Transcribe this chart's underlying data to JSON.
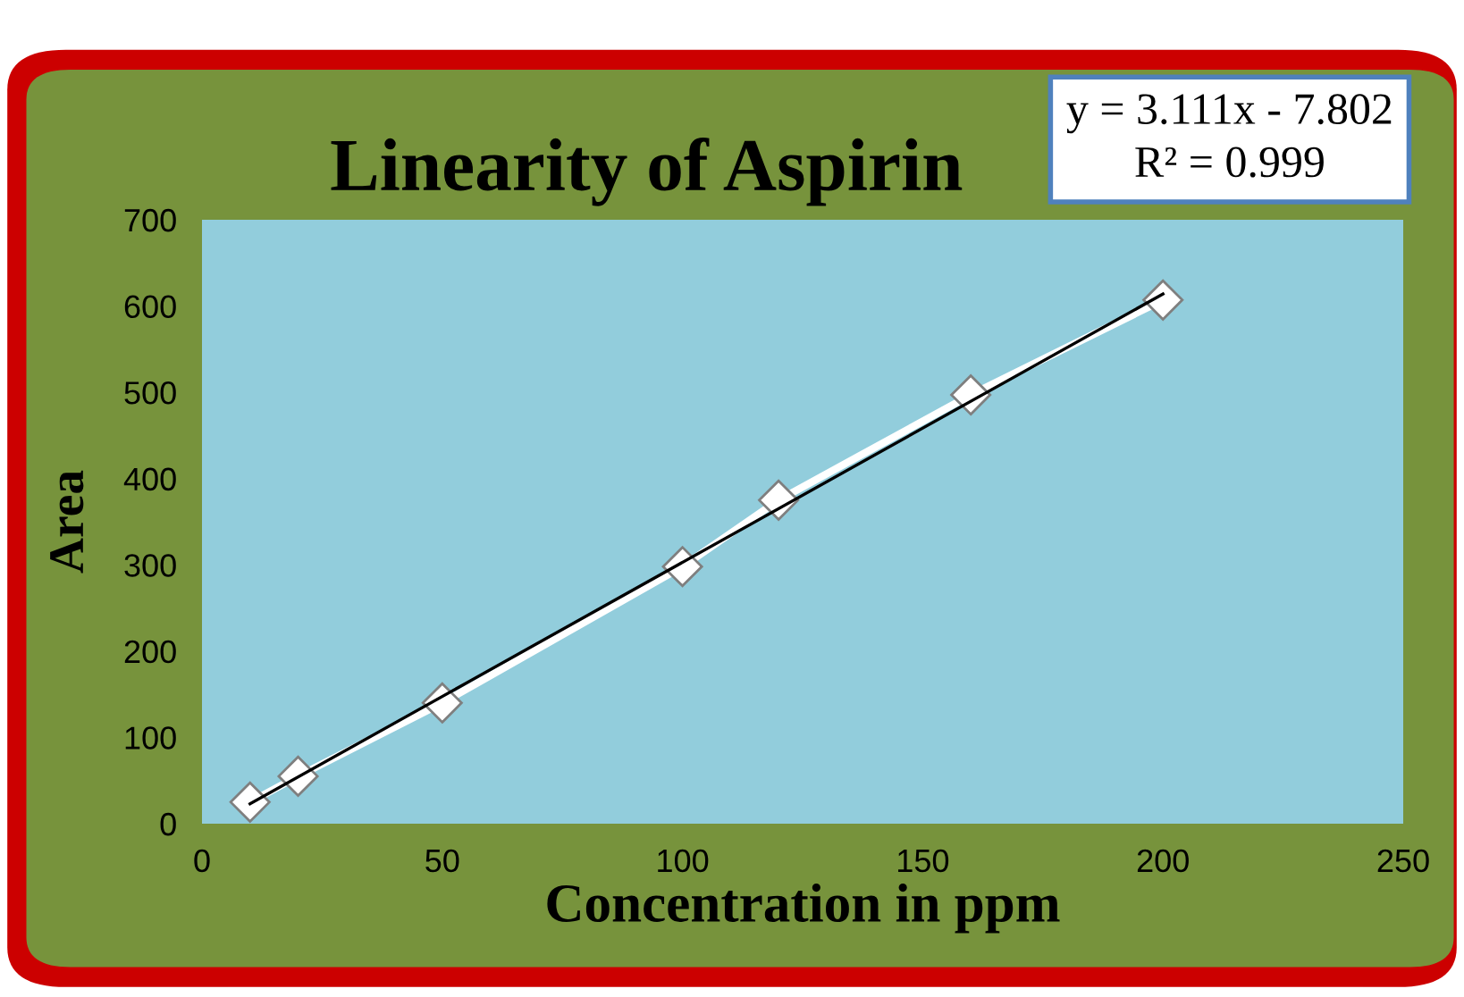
{
  "chart_data": {
    "type": "line",
    "title": "Linearity of Aspirin",
    "xlabel": "Concentration in ppm",
    "ylabel": "Area",
    "annotations": [
      "y = 3.111x - 7.802\nR² = 0.999"
    ],
    "series": [
      {
        "color": "#ffffff",
        "marker": "diamond",
        "x": [
          10,
          20,
          50,
          100,
          120,
          160,
          200
        ],
        "values": [
          25,
          55,
          140,
          298,
          375,
          497,
          607
        ]
      },
      {
        "color": "#000000",
        "marker": "none",
        "x": [
          10,
          200
        ],
        "values": [
          23,
          614
        ]
      }
    ],
    "xlim": [
      0,
      250
    ],
    "xticks": [
      0,
      50,
      100,
      150,
      200,
      250
    ],
    "ylim": [
      0,
      700
    ],
    "yticks": [
      0,
      100,
      200,
      300,
      400,
      500,
      600,
      700
    ],
    "grid": false,
    "legend": false
  }
}
